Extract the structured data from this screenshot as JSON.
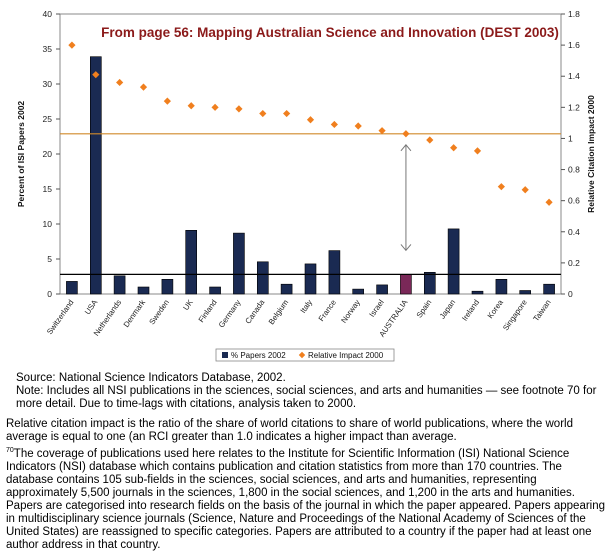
{
  "chart_data": {
    "type": "bar",
    "title": "From page 56: Mapping Australian Science and Innovation (DEST 2003)",
    "ylabel": "Percent of ISI Papers 2002",
    "y2label": "Relative Citation Impact 2000",
    "ylim": [
      0,
      40
    ],
    "y2lim": [
      0,
      1.8
    ],
    "yticks": [
      "0",
      "5",
      "10",
      "15",
      "20",
      "25",
      "30",
      "35",
      "40"
    ],
    "y2ticks": [
      "0",
      "0.2",
      "0.4",
      "0.6",
      "0.8",
      "1",
      "1.2",
      "1.4",
      "1.6",
      "1.8"
    ],
    "categories": [
      "Switzerland",
      "USA",
      "Netherlands",
      "Denmark",
      "Sweden",
      "UK",
      "Finland",
      "Germany",
      "Canada",
      "Belgium",
      "Italy",
      "France",
      "Norway",
      "Israel",
      "AUSTRALIA",
      "Spain",
      "Japan",
      "Ireland",
      "Korea",
      "Singapore",
      "Taiwan"
    ],
    "highlight_category": "AUSTRALIA",
    "series": [
      {
        "name": "% Papers 2002",
        "kind": "bar",
        "axis": "left",
        "color": "#1a2a52",
        "values": [
          1.8,
          33.9,
          2.6,
          1.0,
          2.1,
          9.1,
          1.0,
          8.7,
          4.6,
          1.4,
          4.3,
          6.2,
          0.7,
          1.3,
          2.8,
          3.1,
          9.3,
          0.4,
          2.1,
          0.5,
          1.4
        ]
      },
      {
        "name": "Relative Impact 2000",
        "kind": "point",
        "axis": "right",
        "color": "#f07f1e",
        "values": [
          1.6,
          1.41,
          1.36,
          1.33,
          1.24,
          1.21,
          1.2,
          1.19,
          1.16,
          1.16,
          1.12,
          1.09,
          1.08,
          1.05,
          1.03,
          0.99,
          0.94,
          0.92,
          0.69,
          0.67,
          0.59
        ]
      }
    ],
    "reference_lines": [
      {
        "axis": "right",
        "value": 1.03,
        "color": "#d18a2a"
      },
      {
        "axis": "left",
        "value": 2.8,
        "color": "#000000"
      }
    ],
    "annotation": "double-headed arrow between the two reference lines at AUSTRALIA",
    "legend_position": "bottom-center",
    "grid": false,
    "colors": {
      "bar": "#1a2a52",
      "highlight_bar": "#7a2858",
      "point": "#f07f1e",
      "title": "#8b1a1a"
    }
  },
  "notes": {
    "source": "Source: National Science Indicators Database, 2002.",
    "note": "Note: Includes all NSI publications in the sciences, social sciences, and arts and humanities — see footnote 70 for more detail. Due to time-lags with citations, analysis taken to 2000.",
    "rci": "Relative citation impact is the ratio of the share of world citations to share of world publications, where the world average is equal to one (an RCI greater than 1.0 indicates a higher impact than average.",
    "footnote_mark": "70",
    "footnote": "The coverage of publications used here relates to the Institute for Scientific Information (ISI) National Science Indicators (NSI) database which contains publication and citation statistics from more than 170 countries. The database contains 105 sub-fields in the sciences, social sciences, and arts and humanities, representing approximately 5,500 journals in the sciences, 1,800 in the social sciences, and 1,200 in the arts and humanities. Papers are categorised into research fields on the basis of the journal in which the paper appeared. Papers appearing in multidisciplinary science journals (Science, Nature and Proceedings of the National Academy of Sciences of the United States) are reassigned to specific categories. Papers are attributed to a country if the paper had at least one author address in that country."
  }
}
